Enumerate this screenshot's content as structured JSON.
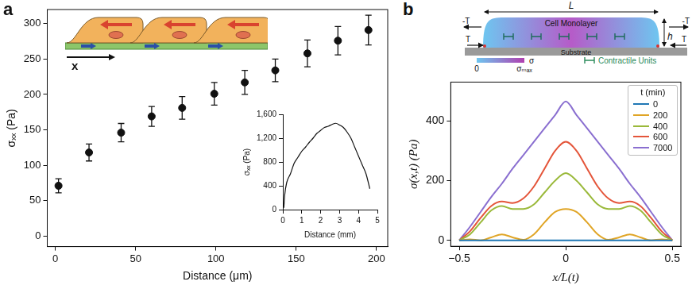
{
  "panel_labels": [
    "a",
    "b"
  ],
  "chart_data": [
    {
      "type": "scatter",
      "x_label": "Distance (μm)",
      "y_label": "σₓₓ (Pa)",
      "x": [
        2,
        21,
        41,
        60,
        79,
        99,
        118,
        137,
        157,
        176,
        195
      ],
      "values": [
        71,
        118,
        146,
        169,
        181,
        201,
        217,
        234,
        258,
        276,
        291
      ],
      "errors": [
        10,
        12,
        13,
        14,
        16,
        16,
        17,
        16,
        19,
        20,
        21
      ],
      "color": "#111111",
      "marker": "circle",
      "xlim": [
        -5,
        207
      ],
      "ylim": [
        -15,
        320
      ],
      "xticks": [
        0,
        50,
        100,
        150,
        200
      ],
      "yticks": [
        0,
        50,
        100,
        150,
        200,
        250,
        300
      ],
      "grid": false
    },
    {
      "type": "line",
      "x_label": "Distance (mm)",
      "y_label": "σₓₓ (Pa)",
      "x": [
        0.05,
        0.1,
        0.2,
        0.4,
        0.6,
        0.8,
        1.0,
        1.2,
        1.4,
        1.6,
        1.8,
        2.0,
        2.2,
        2.4,
        2.6,
        2.8,
        3.0,
        3.2,
        3.4,
        3.6,
        3.8,
        4.0,
        4.2,
        4.4,
        4.6
      ],
      "values": [
        30,
        250,
        450,
        600,
        780,
        880,
        980,
        1050,
        1130,
        1200,
        1280,
        1330,
        1380,
        1400,
        1430,
        1450,
        1420,
        1380,
        1300,
        1200,
        1050,
        900,
        750,
        600,
        350
      ],
      "color": "#111111",
      "xlim": [
        0,
        5
      ],
      "ylim": [
        0,
        1600
      ],
      "xticks": [
        0,
        1,
        2,
        3,
        4,
        5
      ],
      "yticks": [
        0,
        400,
        800,
        {
          "value": 1200,
          "label": "1,200"
        },
        {
          "value": 1600,
          "label": "1,600"
        }
      ],
      "grid": false
    },
    {
      "type": "line",
      "x_label": "x/L(t)",
      "y_label": "σ(x,t) (Pa)",
      "x": [
        -0.5,
        -0.45,
        -0.4,
        -0.35,
        -0.3,
        -0.25,
        -0.2,
        -0.15,
        -0.1,
        -0.05,
        0,
        0.05,
        0.1,
        0.15,
        0.2,
        0.25,
        0.3,
        0.35,
        0.4,
        0.45,
        0.5
      ],
      "series": [
        {
          "name": "0",
          "color": "#1f77b4",
          "values": [
            0,
            0,
            0,
            0,
            0,
            0,
            0,
            0,
            0,
            0,
            0,
            0,
            0,
            0,
            0,
            0,
            0,
            0,
            0,
            0,
            0
          ]
        },
        {
          "name": "200",
          "color": "#e0a526",
          "values": [
            0,
            3,
            0,
            10,
            20,
            10,
            2,
            20,
            60,
            95,
            105,
            95,
            60,
            20,
            2,
            10,
            20,
            10,
            0,
            3,
            0
          ]
        },
        {
          "name": "400",
          "color": "#9ab93a",
          "values": [
            0,
            20,
            60,
            100,
            115,
            105,
            105,
            120,
            160,
            200,
            225,
            200,
            160,
            120,
            105,
            105,
            115,
            100,
            60,
            20,
            0
          ]
        },
        {
          "name": "600",
          "color": "#e4553a",
          "values": [
            0,
            30,
            75,
            115,
            130,
            125,
            140,
            180,
            240,
            300,
            330,
            300,
            240,
            180,
            140,
            125,
            130,
            115,
            75,
            30,
            0
          ]
        },
        {
          "name": "7000",
          "color": "#8a6fd0",
          "values": [
            0,
            45,
            95,
            145,
            190,
            240,
            285,
            330,
            375,
            420,
            465,
            420,
            375,
            330,
            285,
            240,
            190,
            145,
            95,
            45,
            0
          ]
        }
      ],
      "legend": "upper right",
      "legend_title": "t (min)",
      "xlim": [
        -0.54,
        0.54
      ],
      "ylim": [
        -20,
        530
      ],
      "xticks": [
        {
          "value": -0.5,
          "label": "−0.5"
        },
        0,
        0.5
      ],
      "yticks": [
        0,
        200,
        400
      ],
      "grid": false
    }
  ],
  "diagrams": {
    "a": {
      "axis_label": "x"
    },
    "b": {
      "body_label": "Cell Monolayer",
      "width_label": "L",
      "height_label": "h",
      "left_labels": [
        "-T",
        "T"
      ],
      "right_labels": [
        "-T",
        "T"
      ],
      "substrate_label": "Substrate",
      "colorbar_min": 0,
      "colorbar_max": "σₘₐₓ",
      "colorbar_label": "σ",
      "unit_label": "Contractile Units"
    }
  }
}
